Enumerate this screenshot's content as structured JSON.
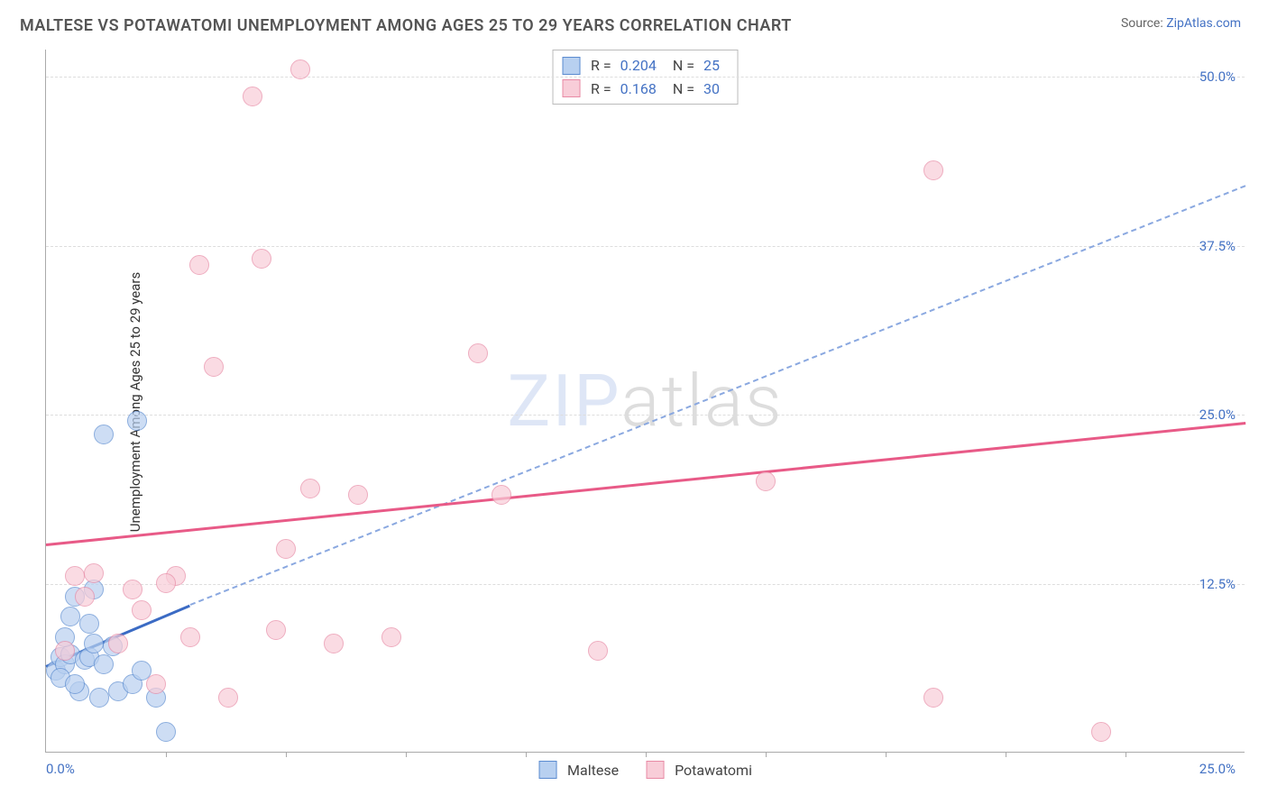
{
  "title": "MALTESE VS POTAWATOMI UNEMPLOYMENT AMONG AGES 25 TO 29 YEARS CORRELATION CHART",
  "source_prefix": "Source: ",
  "source_link_text": "ZipAtlas.com",
  "y_axis_label": "Unemployment Among Ages 25 to 29 years",
  "watermark_zip": "ZIP",
  "watermark_atlas": "atlas",
  "chart": {
    "type": "scatter",
    "background_color": "#ffffff",
    "grid_color": "#dddddd",
    "axis_color": "#aaaaaa",
    "x_range": [
      0,
      25
    ],
    "y_range": [
      0,
      52
    ],
    "y_ticks": [
      12.5,
      25.0,
      37.5,
      50.0
    ],
    "y_tick_labels": [
      "12.5%",
      "25.0%",
      "37.5%",
      "50.0%"
    ],
    "x_origin_label": "0.0%",
    "x_max_label": "25.0%",
    "x_tick_positions": [
      2.5,
      5.0,
      7.5,
      10.0,
      12.5,
      15.0,
      17.5,
      20.0,
      22.5
    ],
    "series": [
      {
        "name": "Maltese",
        "marker_fill": "#b8d0f0",
        "marker_stroke": "#5b8bd0",
        "marker_radius": 11,
        "marker_opacity": 0.7,
        "points": [
          [
            0.2,
            6.0
          ],
          [
            0.3,
            7.0
          ],
          [
            0.4,
            6.5
          ],
          [
            0.5,
            7.2
          ],
          [
            0.3,
            5.5
          ],
          [
            0.8,
            6.8
          ],
          [
            0.6,
            11.5
          ],
          [
            0.9,
            7.0
          ],
          [
            1.0,
            8.0
          ],
          [
            1.2,
            6.5
          ],
          [
            0.7,
            4.5
          ],
          [
            1.1,
            4.0
          ],
          [
            1.5,
            4.5
          ],
          [
            1.4,
            7.8
          ],
          [
            1.8,
            5.0
          ],
          [
            2.0,
            6.0
          ],
          [
            2.3,
            4.0
          ],
          [
            2.5,
            1.5
          ],
          [
            1.0,
            12.0
          ],
          [
            0.5,
            10.0
          ],
          [
            1.2,
            23.5
          ],
          [
            1.9,
            24.5
          ],
          [
            0.4,
            8.5
          ],
          [
            0.6,
            5.0
          ],
          [
            0.9,
            9.5
          ]
        ],
        "trend": {
          "x1": 0,
          "y1": 6.5,
          "x2": 3.0,
          "y2": 11.0,
          "style": "solid-blue"
        },
        "trend_ext": {
          "x1": 3.0,
          "y1": 11.0,
          "x2": 25.0,
          "y2": 42.0,
          "style": "dash-blue"
        }
      },
      {
        "name": "Potawatomi",
        "marker_fill": "#f8cdd8",
        "marker_stroke": "#e88aa5",
        "marker_radius": 11,
        "marker_opacity": 0.7,
        "points": [
          [
            0.4,
            7.5
          ],
          [
            0.6,
            13.0
          ],
          [
            0.8,
            11.5
          ],
          [
            1.0,
            13.2
          ],
          [
            1.5,
            8.0
          ],
          [
            1.8,
            12.0
          ],
          [
            2.0,
            10.5
          ],
          [
            2.3,
            5.0
          ],
          [
            2.7,
            13.0
          ],
          [
            3.0,
            8.5
          ],
          [
            3.2,
            36.0
          ],
          [
            3.5,
            28.5
          ],
          [
            3.8,
            4.0
          ],
          [
            4.3,
            48.5
          ],
          [
            4.5,
            36.5
          ],
          [
            5.3,
            50.5
          ],
          [
            5.0,
            15.0
          ],
          [
            5.5,
            19.5
          ],
          [
            6.0,
            8.0
          ],
          [
            6.5,
            19.0
          ],
          [
            7.2,
            8.5
          ],
          [
            9.0,
            29.5
          ],
          [
            9.5,
            19.0
          ],
          [
            11.5,
            7.5
          ],
          [
            15.0,
            20.0
          ],
          [
            18.5,
            43.0
          ],
          [
            22.0,
            1.5
          ],
          [
            18.5,
            4.0
          ],
          [
            2.5,
            12.5
          ],
          [
            4.8,
            9.0
          ]
        ],
        "trend": {
          "x1": 0,
          "y1": 15.5,
          "x2": 25.0,
          "y2": 24.5,
          "style": "solid-pink"
        }
      }
    ]
  },
  "stats": [
    {
      "swatch_fill": "#b8d0f0",
      "swatch_stroke": "#5b8bd0",
      "r_label": "R =",
      "r_value": "0.204",
      "n_label": "N =",
      "n_value": "25"
    },
    {
      "swatch_fill": "#f8cdd8",
      "swatch_stroke": "#e88aa5",
      "r_label": "R =",
      "r_value": "0.168",
      "n_label": "N =",
      "n_value": "30"
    }
  ],
  "bottom_legend": [
    {
      "swatch_fill": "#b8d0f0",
      "swatch_stroke": "#5b8bd0",
      "label": "Maltese"
    },
    {
      "swatch_fill": "#f8cdd8",
      "swatch_stroke": "#e88aa5",
      "label": "Potawatomi"
    }
  ]
}
